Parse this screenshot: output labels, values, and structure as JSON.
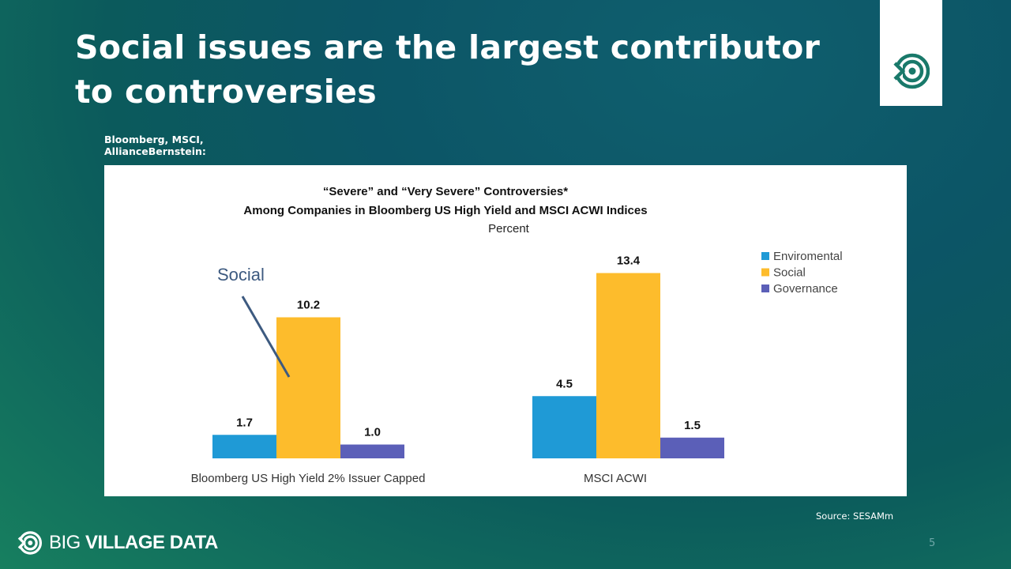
{
  "slide": {
    "title": "Social issues are the largest contributor to controversies",
    "source_label": "Bloomberg, MSCI, AllianceBernstein:",
    "source_note": "Source: SESAMm",
    "page_number": "5",
    "brand": {
      "part1": "BIG ",
      "part2": "VILLAGE DATA"
    },
    "colors": {
      "accent_green": "#19796a",
      "environmental": "#1f9ad6",
      "social": "#fdbc2c",
      "governance": "#5b5fb8"
    }
  },
  "chart_data": {
    "type": "bar",
    "title": "“Severe” and “Very Severe” Controversies*",
    "subtitle": "Among Companies in Bloomberg US High Yield and MSCI ACWI Indices",
    "unit_label": "Percent",
    "categories": [
      "Bloomberg US High Yield 2% Issuer Capped",
      "MSCI ACWI"
    ],
    "series": [
      {
        "name": "Enviromental",
        "values": [
          1.7,
          4.5
        ],
        "labels": [
          "1.7",
          "4.5"
        ],
        "color": "#1f9ad6"
      },
      {
        "name": "Social",
        "values": [
          10.2,
          13.4
        ],
        "labels": [
          "10.2",
          "13.4"
        ],
        "color": "#fdbc2c"
      },
      {
        "name": "Governance",
        "values": [
          1.0,
          1.5
        ],
        "labels": [
          "1.0",
          "1.5"
        ],
        "color": "#5b5fb8"
      }
    ],
    "annotation": "Social",
    "ylim": [
      0,
      14
    ],
    "legend_position": "top-right",
    "grid": false
  }
}
